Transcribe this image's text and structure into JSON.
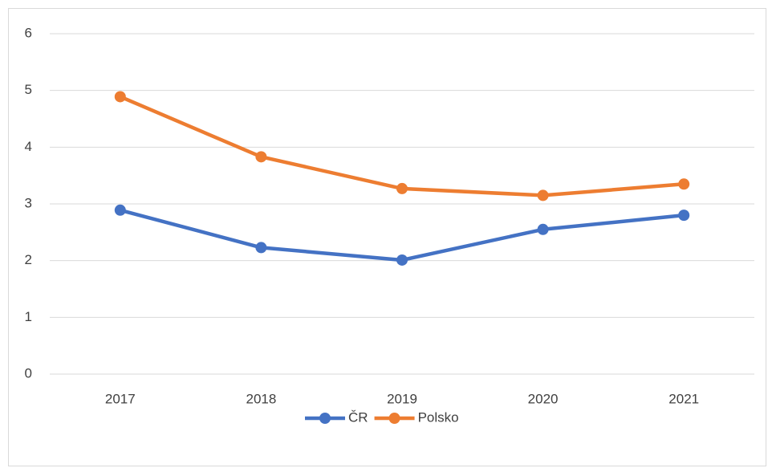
{
  "chart_data": {
    "type": "line",
    "categories": [
      "2017",
      "2018",
      "2019",
      "2020",
      "2021"
    ],
    "series": [
      {
        "name": "ČR",
        "color": "#4472c4",
        "values": [
          2.89,
          2.23,
          2.01,
          2.55,
          2.8
        ]
      },
      {
        "name": "Polsko",
        "color": "#ed7d31",
        "values": [
          4.89,
          3.83,
          3.27,
          3.15,
          3.35
        ]
      }
    ],
    "ylim": [
      0,
      6
    ],
    "yticks": [
      0,
      1,
      2,
      3,
      4,
      5,
      6
    ],
    "grid": true,
    "legend": "bottom"
  }
}
